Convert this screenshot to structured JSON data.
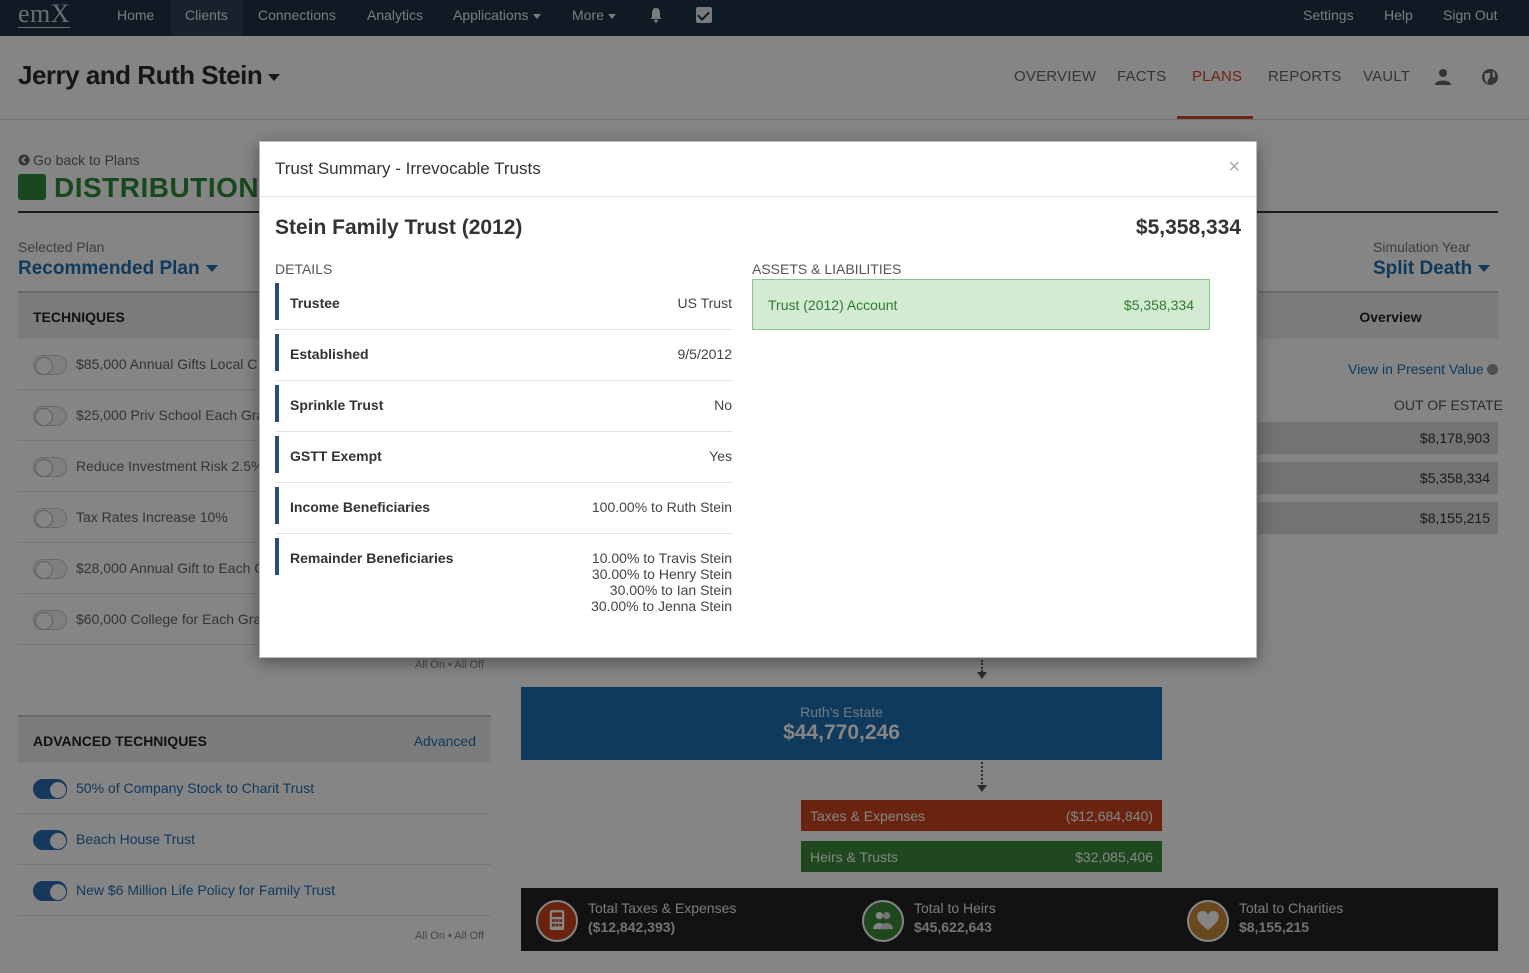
{
  "topnav": {
    "logo": "emX",
    "items": [
      "Home",
      "Clients",
      "Connections",
      "Analytics",
      "Applications",
      "More"
    ],
    "right_items": [
      "Settings",
      "Help",
      "Sign Out"
    ]
  },
  "client": {
    "name": "Jerry and Ruth Stein",
    "tabs": [
      "OVERVIEW",
      "FACTS",
      "PLANS",
      "REPORTS",
      "VAULT"
    ],
    "active_tab": "PLANS"
  },
  "page": {
    "back_link": "Go back to Plans",
    "title": "DISTRIBUTION",
    "selected_plan_label": "Selected Plan",
    "selected_plan": "Recommended Plan",
    "simulation_year_label": "Simulation Year",
    "simulation_year": "Split Death"
  },
  "techniques": {
    "header": "TECHNIQUES",
    "items": [
      "$85,000 Annual Gifts Local C",
      "$25,000 Priv School Each Gra",
      "Reduce Investment Risk 2.5%",
      "Tax Rates Increase 10%",
      "$28,000 Annual Gift to Each C",
      "$60,000 College for Each Gra"
    ],
    "all_on_off": "All On • All Off"
  },
  "advanced": {
    "header": "ADVANCED TECHNIQUES",
    "link": "Advanced",
    "items": [
      "50% of Company Stock to Charit Trust",
      "Beach House Trust",
      "New $6 Million Life Policy for Family Trust"
    ],
    "all_on_off": "All On • All Off"
  },
  "overview": {
    "tab": "Overview",
    "present_value_link": "View in Present Value",
    "out_of_estate_label": "OUT OF ESTATE",
    "values": [
      "$8,178,903",
      "$5,358,334",
      "$8,155,215"
    ]
  },
  "flow": {
    "estate_label": "Ruth's Estate",
    "estate_value": "$44,770,246",
    "taxes_label": "Taxes & Expenses",
    "taxes_value": "($12,684,840)",
    "heirs_label": "Heirs & Trusts",
    "heirs_value": "$32,085,406"
  },
  "totals": {
    "taxes_label": "Total Taxes & Expenses",
    "taxes_value": "($12,842,393)",
    "heirs_label": "Total to Heirs",
    "heirs_value": "$45,622,643",
    "charities_label": "Total to Charities",
    "charities_value": "$8,155,215",
    "colors": {
      "taxes": "#c9441d",
      "heirs": "#3d8a3a",
      "charities": "#c98a3a"
    }
  },
  "modal": {
    "title": "Trust Summary - Irrevocable Trusts",
    "close": "×",
    "trust_name": "Stein Family Trust (2012)",
    "trust_total": "$5,358,334",
    "details_label": "DETAILS",
    "details": [
      {
        "k": "Trustee",
        "v": "US Trust"
      },
      {
        "k": "Established",
        "v": "9/5/2012"
      },
      {
        "k": "Sprinkle Trust",
        "v": "No"
      },
      {
        "k": "GSTT Exempt",
        "v": "Yes"
      },
      {
        "k": "Income Beneficiaries",
        "v": "100.00% to Ruth Stein"
      }
    ],
    "remainder_label": "Remainder Beneficiaries",
    "remainder": [
      "10.00% to Travis Stein",
      "30.00% to Henry Stein",
      "30.00% to Ian Stein",
      "30.00% to Jenna Stein"
    ],
    "assets_label": "ASSETS & LIABILITIES",
    "asset_name": "Trust (2012) Account",
    "asset_value": "$5,358,334"
  }
}
